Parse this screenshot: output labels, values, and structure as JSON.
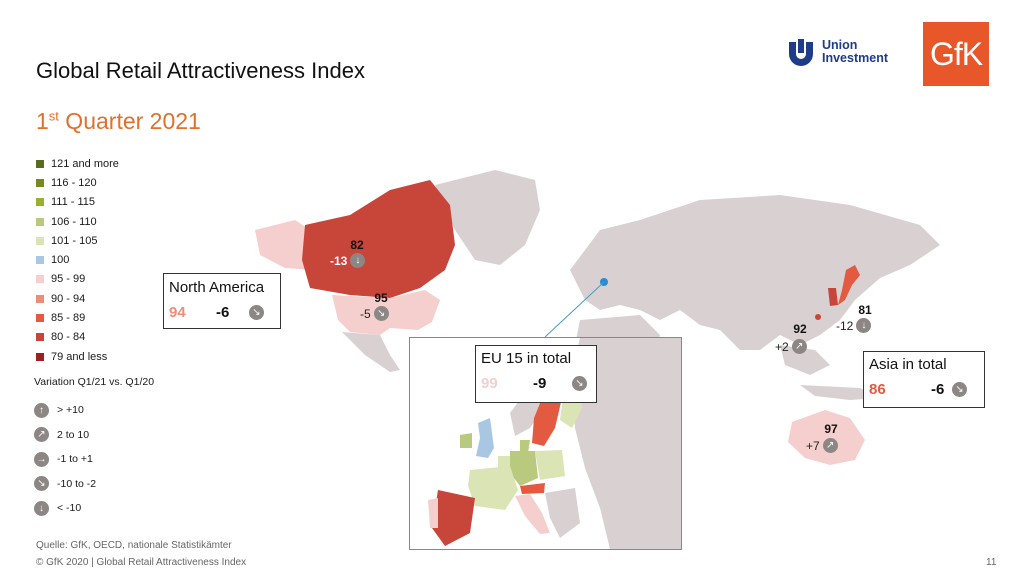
{
  "title": "Global Retail Attractiveness Index",
  "subtitle": {
    "prefix": "1",
    "sup": "st",
    "rest": " Quarter 2021"
  },
  "legend": [
    {
      "label": "121 and more",
      "color": "#5a6b1e"
    },
    {
      "label": "116 - 120",
      "color": "#77891f"
    },
    {
      "label": "111 - 115",
      "color": "#9cae30"
    },
    {
      "label": "106 - 110",
      "color": "#b9c97e"
    },
    {
      "label": "101 - 105",
      "color": "#dbe4b4"
    },
    {
      "label": "100",
      "color": "#a9c6e3"
    },
    {
      "label": "95 - 99",
      "color": "#f5cfcd"
    },
    {
      "label": "90 - 94",
      "color": "#ee8d78"
    },
    {
      "label": "85 - 89",
      "color": "#e35a40"
    },
    {
      "label": "80 - 84",
      "color": "#c8453a"
    },
    {
      "label": "79 and less",
      "color": "#9e1f22"
    }
  ],
  "variation_title": "Variation Q1/21 vs. Q1/20",
  "variation": [
    {
      "label": "> +10",
      "icon": "arrow-up-icon",
      "glyph": "↑"
    },
    {
      "label": "2 to 10",
      "icon": "arrow-up-right-icon",
      "glyph": "↗"
    },
    {
      "label": "-1 to +1",
      "icon": "arrow-right-icon",
      "glyph": "→"
    },
    {
      "label": "-10 to -2",
      "icon": "arrow-down-right-icon",
      "glyph": "↘"
    },
    {
      "label": "< -10",
      "icon": "arrow-down-icon",
      "glyph": "↓"
    }
  ],
  "source": "Quelle: GfK, OECD, nationale Statistikämter",
  "copyright": "© GfK 2020 | Global Retail Attractiveness Index",
  "page_number": "11",
  "logos": {
    "union": "Union\nInvestment",
    "gfk": "GfK"
  },
  "north_america": {
    "title": "North America",
    "value": "94",
    "change": "-6",
    "value_color": "#ee8d78"
  },
  "asia": {
    "title": "Asia in total",
    "value": "86",
    "change": "-6",
    "value_color": "#e35a40"
  },
  "eu15": {
    "title": "EU 15 in total",
    "value": "99",
    "change": "-9",
    "value_color": "#f5cfcd"
  },
  "countries": {
    "canada": {
      "value": "82",
      "change": "-13"
    },
    "usa": {
      "value": "95",
      "change": "-5"
    },
    "china": {
      "value": "92",
      "change": "+2"
    },
    "japan": {
      "value": "81",
      "change": "-12"
    },
    "australia": {
      "value": "97",
      "change": "+7"
    }
  },
  "colors": {
    "base_land": "#d9d1d1",
    "accent": "#e0702a",
    "inset_border": "#4a9bbd"
  }
}
